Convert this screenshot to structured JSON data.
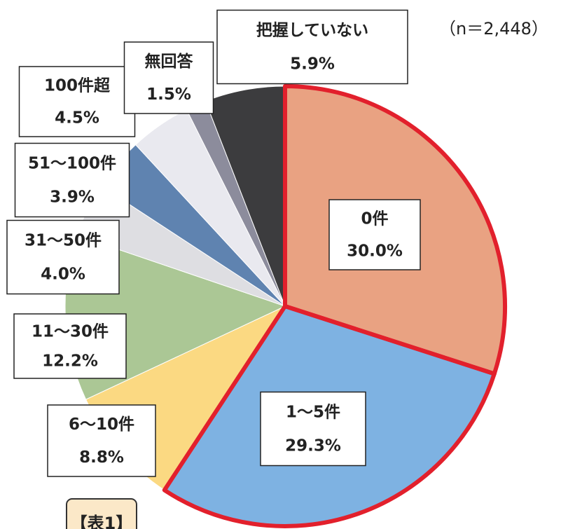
{
  "chart_data": {
    "type": "pie",
    "annotation": "（n＝2,448）",
    "caption": "【表1】",
    "categories": [
      "0件",
      "1～5件",
      "6～10件",
      "11～30件",
      "31～50件",
      "51～100件",
      "100件超",
      "無回答",
      "把握していない"
    ],
    "values": [
      30.0,
      29.3,
      8.8,
      12.2,
      4.0,
      3.9,
      4.5,
      1.5,
      5.9
    ],
    "value_labels": [
      "30.0%",
      "29.3%",
      "8.8%",
      "12.2%",
      "4.0%",
      "3.9%",
      "4.5%",
      "1.5%",
      "5.9%"
    ],
    "colors": [
      "#e9a282",
      "#7eb2e2",
      "#fbd982",
      "#abc795",
      "#dedee2",
      "#5f83b0",
      "#e9e9ef",
      "#8c8c9c",
      "#3c3c3e"
    ],
    "highlighted": [
      0,
      1
    ],
    "highlight_color": "#e2202c"
  }
}
